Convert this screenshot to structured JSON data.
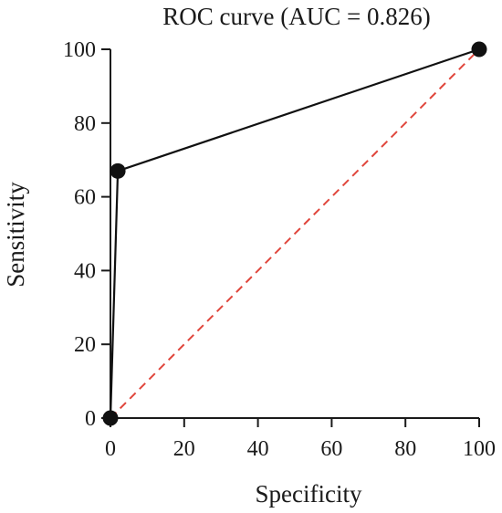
{
  "chart_data": {
    "type": "line",
    "title": "ROC curve (AUC = 0.826)",
    "xlabel": "Specificity",
    "ylabel": "Sensitivity",
    "xlim": [
      0,
      100
    ],
    "ylim": [
      0,
      100
    ],
    "x_ticks": [
      "0",
      "20",
      "40",
      "60",
      "80",
      "100"
    ],
    "y_ticks": [
      "0",
      "20",
      "40",
      "60",
      "80",
      "100"
    ],
    "grid": false,
    "legend": "none",
    "series": [
      {
        "x": [
          0,
          2,
          100
        ],
        "y": [
          0,
          67,
          100
        ],
        "color": "#111111",
        "markers": true
      },
      {
        "x": [
          0,
          100
        ],
        "y": [
          0,
          100
        ],
        "color": "#e0463c",
        "style": "dashed",
        "markers": false
      }
    ]
  }
}
